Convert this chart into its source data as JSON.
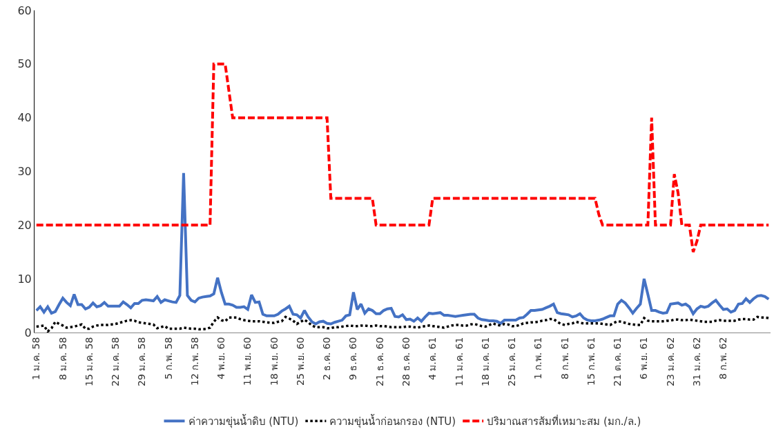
{
  "chart_data": {
    "type": "line",
    "categories": [
      "1 ม.ค. 58",
      null,
      null,
      null,
      null,
      null,
      null,
      "8 ม.ค. 58",
      null,
      null,
      null,
      null,
      null,
      null,
      "15 ม.ค. 58",
      null,
      null,
      null,
      null,
      null,
      null,
      "22 ม.ค. 58",
      null,
      null,
      null,
      null,
      null,
      null,
      "29 ม.ค. 58",
      null,
      null,
      null,
      null,
      null,
      null,
      "5 ก.พ. 58",
      null,
      null,
      null,
      null,
      null,
      null,
      "12 ก.พ. 58",
      null,
      null,
      null,
      null,
      null,
      null,
      "4 พ.ย. 60",
      null,
      null,
      null,
      null,
      null,
      null,
      "11 พ.ย. 60",
      null,
      null,
      null,
      null,
      null,
      null,
      "18 พ.ย. 60",
      null,
      null,
      null,
      null,
      null,
      null,
      "25 พ.ย. 60",
      null,
      null,
      null,
      null,
      null,
      null,
      "2 ธ.ค. 60",
      null,
      null,
      null,
      null,
      null,
      null,
      "9 ธ.ค. 60",
      null,
      null,
      null,
      null,
      null,
      null,
      "21 ธ.ค. 60",
      null,
      null,
      null,
      null,
      null,
      null,
      "28 ธ.ค. 60",
      null,
      null,
      null,
      null,
      null,
      null,
      "4 ม.ค. 61",
      null,
      null,
      null,
      null,
      null,
      null,
      "11 ม.ค. 61",
      null,
      null,
      null,
      null,
      null,
      null,
      "18 ม.ค. 61",
      null,
      null,
      null,
      null,
      null,
      null,
      "25 ม.ค. 61",
      null,
      null,
      null,
      null,
      null,
      null,
      "1 ก.พ. 61",
      null,
      null,
      null,
      null,
      null,
      null,
      "8 ก.พ. 61",
      null,
      null,
      null,
      null,
      null,
      null,
      "15 ก.พ. 61",
      null,
      null,
      null,
      null,
      null,
      null,
      "21 ต.ค. 61",
      null,
      null,
      null,
      null,
      null,
      null,
      "6 พ.ย. 61",
      null,
      null,
      null,
      null,
      null,
      null,
      "23 ม.ค. 62",
      null,
      null,
      null,
      null,
      null,
      null,
      "31 ม.ค. 62",
      null,
      null,
      null,
      null,
      null,
      null,
      "8 ก.พ. 62",
      null,
      null,
      null,
      null,
      null,
      null,
      null,
      null,
      null,
      null,
      null,
      null
    ],
    "series": [
      {
        "name": "ค่าความขุ่นน้ำดิบ (NTU)",
        "color": "#4472c4",
        "line_style": "solid",
        "values": [
          4.1,
          4.8,
          3.8,
          4.8,
          3.6,
          3.9,
          5.2,
          6.4,
          5.6,
          5.0,
          7.1,
          5.2,
          5.2,
          4.4,
          4.7,
          5.5,
          4.8,
          5.0,
          5.6,
          4.9,
          4.9,
          4.9,
          4.9,
          5.7,
          5.2,
          4.6,
          5.4,
          5.4,
          6.0,
          6.1,
          6.0,
          5.9,
          6.7,
          5.6,
          6.1,
          5.9,
          5.7,
          5.6,
          6.9,
          29.7,
          6.9,
          6.0,
          5.7,
          6.4,
          6.6,
          6.7,
          6.8,
          7.2,
          10.2,
          7.5,
          5.3,
          5.3,
          5.1,
          4.7,
          4.7,
          4.8,
          4.3,
          7.0,
          5.6,
          5.7,
          3.4,
          3.1,
          3.1,
          3.1,
          3.4,
          4.0,
          4.4,
          4.9,
          3.4,
          3.3,
          2.7,
          4.1,
          2.9,
          2.0,
          1.6,
          2.0,
          2.1,
          1.7,
          1.6,
          1.9,
          2.1,
          2.3,
          3.1,
          3.3,
          7.5,
          4.3,
          5.3,
          3.6,
          4.4,
          4.1,
          3.5,
          3.5,
          4.1,
          4.4,
          4.5,
          3.0,
          2.9,
          3.3,
          2.4,
          2.5,
          2.1,
          2.7,
          2.1,
          2.9,
          3.6,
          3.5,
          3.6,
          3.7,
          3.2,
          3.2,
          3.1,
          3.0,
          3.1,
          3.2,
          3.3,
          3.4,
          3.4,
          2.7,
          2.4,
          2.3,
          2.2,
          2.2,
          2.1,
          1.7,
          2.3,
          2.3,
          2.3,
          2.3,
          2.7,
          2.8,
          3.4,
          4.1,
          4.1,
          4.2,
          4.3,
          4.6,
          4.9,
          5.3,
          3.7,
          3.5,
          3.4,
          3.3,
          2.9,
          3.1,
          3.5,
          2.7,
          2.3,
          2.2,
          2.2,
          2.3,
          2.5,
          2.8,
          3.1,
          3.1,
          5.3,
          6.0,
          5.5,
          4.6,
          3.6,
          4.5,
          5.3,
          10.0,
          7.1,
          4.1,
          4.1,
          3.8,
          3.6,
          3.7,
          5.3,
          5.4,
          5.5,
          5.1,
          5.3,
          4.8,
          3.5,
          4.4,
          4.9,
          4.7,
          4.9,
          5.5,
          6.0,
          5.1,
          4.3,
          4.4,
          3.8,
          4.1,
          5.3,
          5.4,
          6.3,
          5.6,
          6.3,
          6.8,
          6.9,
          6.7,
          6.2
        ]
      },
      {
        "name": "ความขุ่นน้ำก่อนกรอง (NTU)",
        "color": "#000000",
        "line_style": "dotted",
        "values": [
          1.1,
          1.2,
          1.3,
          0.2,
          0.8,
          2.0,
          1.6,
          1.3,
          0.9,
          1.0,
          1.1,
          1.3,
          1.5,
          0.7,
          0.7,
          1.1,
          1.3,
          1.4,
          1.4,
          1.4,
          1.5,
          1.6,
          1.8,
          2.0,
          2.2,
          2.3,
          2.2,
          1.9,
          1.8,
          1.7,
          1.6,
          1.5,
          0.8,
          1.0,
          1.2,
          0.7,
          0.7,
          0.7,
          0.7,
          0.9,
          0.8,
          0.7,
          0.7,
          0.6,
          0.6,
          0.7,
          0.9,
          2.0,
          2.8,
          2.3,
          2.1,
          2.8,
          2.8,
          2.8,
          2.5,
          2.3,
          2.2,
          2.1,
          2.1,
          2.1,
          2.0,
          1.9,
          1.8,
          1.8,
          2.0,
          2.1,
          2.9,
          2.6,
          2.2,
          1.6,
          2.0,
          2.4,
          1.9,
          1.3,
          1.0,
          1.0,
          1.0,
          0.8,
          0.8,
          1.0,
          1.0,
          1.1,
          1.2,
          1.3,
          1.2,
          1.2,
          1.3,
          1.3,
          1.2,
          1.2,
          1.3,
          1.2,
          1.2,
          1.1,
          1.0,
          1.0,
          1.0,
          1.0,
          1.1,
          1.1,
          1.0,
          0.9,
          1.1,
          1.2,
          1.3,
          1.2,
          1.1,
          1.0,
          0.9,
          1.1,
          1.3,
          1.4,
          1.4,
          1.3,
          1.3,
          1.5,
          1.6,
          1.4,
          1.2,
          1.1,
          1.4,
          1.7,
          1.4,
          1.3,
          1.6,
          1.5,
          1.2,
          1.2,
          1.4,
          1.7,
          1.8,
          1.9,
          1.9,
          2.0,
          2.2,
          2.3,
          2.5,
          2.5,
          2.0,
          1.6,
          1.4,
          1.6,
          1.7,
          2.0,
          1.8,
          1.7,
          1.7,
          1.7,
          1.7,
          1.7,
          1.6,
          1.5,
          1.4,
          1.8,
          2.1,
          2.0,
          1.8,
          1.6,
          1.5,
          1.4,
          1.4,
          2.7,
          2.2,
          2.1,
          2.1,
          2.1,
          2.1,
          2.2,
          2.2,
          2.4,
          2.4,
          2.3,
          2.3,
          2.4,
          2.3,
          2.2,
          2.1,
          2.0,
          2.0,
          2.0,
          2.2,
          2.3,
          2.2,
          2.2,
          2.2,
          2.2,
          2.4,
          2.5,
          2.5,
          2.4,
          2.4,
          2.9,
          2.8,
          2.8,
          2.7
        ]
      },
      {
        "name": "ปริมาณสารส้มที่เหมาะสม (มก./ล.)",
        "color": "#ff0000",
        "line_style": "dashed",
        "values": [
          20,
          20,
          20,
          20,
          20,
          20,
          20,
          20,
          20,
          20,
          20,
          20,
          20,
          20,
          20,
          20,
          20,
          20,
          20,
          20,
          20,
          20,
          20,
          20,
          20,
          20,
          20,
          20,
          20,
          20,
          20,
          20,
          20,
          20,
          20,
          20,
          20,
          20,
          20,
          20,
          20,
          20,
          20,
          20,
          20,
          20,
          20,
          50,
          50,
          50,
          50,
          45,
          40,
          40,
          40,
          40,
          40,
          40,
          40,
          40,
          40,
          40,
          40,
          40,
          40,
          40,
          40,
          40,
          40,
          40,
          40,
          40,
          40,
          40,
          40,
          40,
          40,
          40,
          25,
          25,
          25,
          25,
          25,
          25,
          25,
          25,
          25,
          25,
          25,
          25,
          20,
          20,
          20,
          20,
          20,
          20,
          20,
          20,
          20,
          20,
          20,
          20,
          20,
          20,
          20,
          25,
          25,
          25,
          25,
          25,
          25,
          25,
          25,
          25,
          25,
          25,
          25,
          25,
          25,
          25,
          25,
          25,
          25,
          25,
          25,
          25,
          25,
          25,
          25,
          25,
          25,
          25,
          25,
          25,
          25,
          25,
          25,
          25,
          25,
          25,
          25,
          25,
          25,
          25,
          25,
          25,
          25,
          25,
          25,
          22,
          20,
          20,
          20,
          20,
          20,
          20,
          20,
          20,
          20,
          20,
          20,
          20,
          20,
          40,
          20,
          20,
          20,
          20,
          20,
          29.5,
          26,
          20,
          20,
          20,
          15,
          17,
          20,
          20,
          20,
          20,
          20,
          20,
          20,
          20,
          20,
          20,
          20,
          20,
          20,
          20,
          20,
          20,
          20,
          20,
          20
        ]
      }
    ],
    "ylim": [
      0,
      60
    ],
    "yticks": [
      0,
      10,
      20,
      30,
      40,
      50,
      60
    ],
    "legend": "bottom"
  }
}
